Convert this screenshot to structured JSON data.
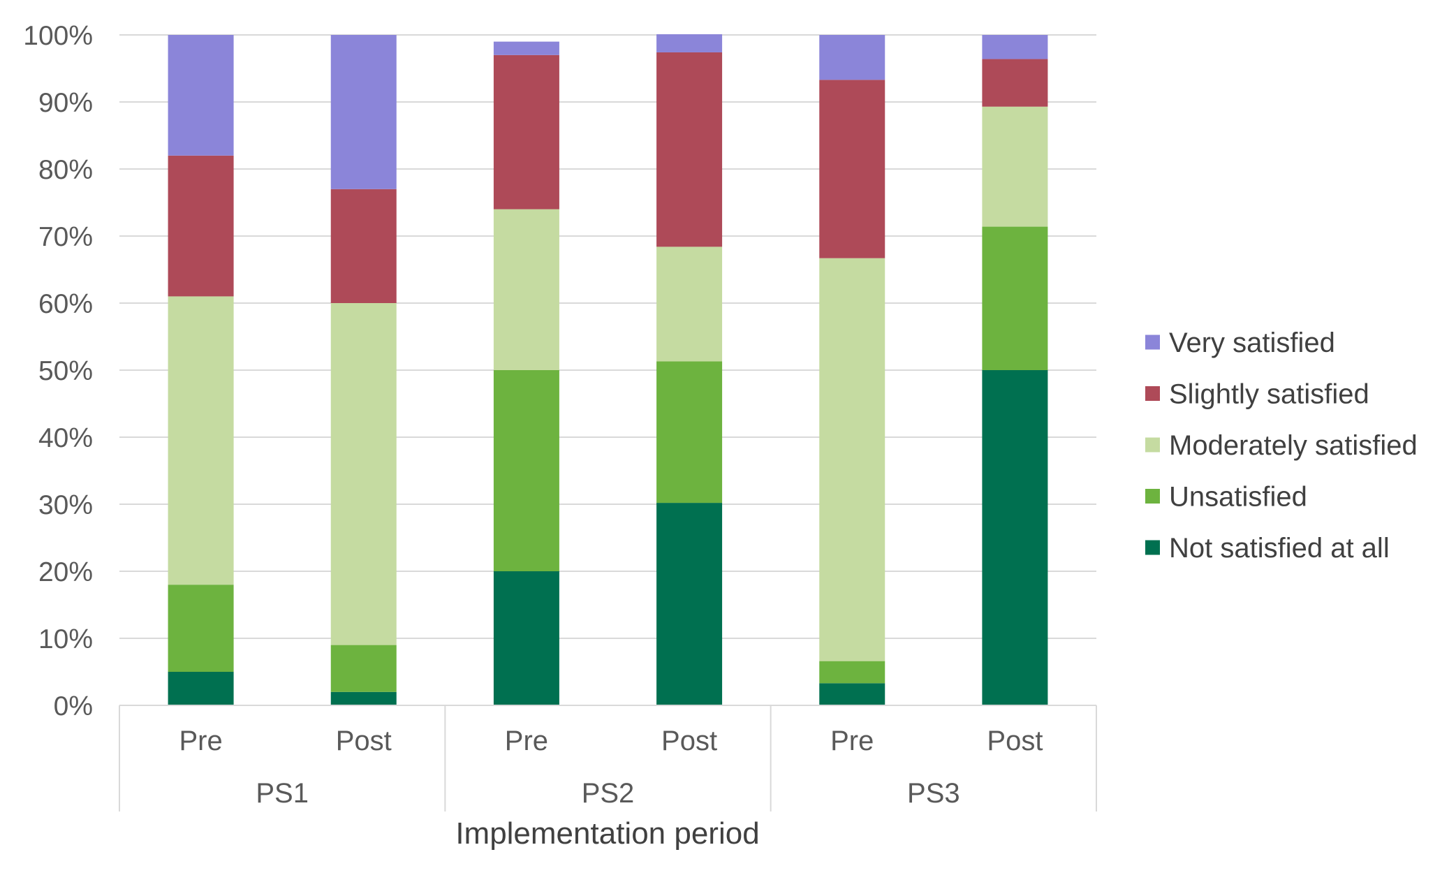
{
  "chart_data": {
    "type": "bar",
    "stacked": true,
    "percent": true,
    "title": "",
    "xlabel": "Implementation period",
    "ylabel": "",
    "ylim": [
      0,
      100
    ],
    "yticks": [
      "0%",
      "10%",
      "20%",
      "30%",
      "40%",
      "50%",
      "60%",
      "70%",
      "80%",
      "90%",
      "100%"
    ],
    "groups": [
      {
        "label": "PS1",
        "categories": [
          "Pre",
          "Post"
        ]
      },
      {
        "label": "PS2",
        "categories": [
          "Pre",
          "Post"
        ]
      },
      {
        "label": "PS3",
        "categories": [
          "Pre",
          "Post"
        ]
      }
    ],
    "series": [
      {
        "name": "Not satisfied at all",
        "color": "#007050",
        "values": [
          5,
          2,
          20,
          30.2,
          3.3,
          50
        ]
      },
      {
        "name": "Unsatisfied",
        "color": "#6DB33F",
        "values": [
          13,
          7,
          30,
          21.1,
          3.3,
          21.4
        ]
      },
      {
        "name": "Moderately satisfied",
        "color": "#C5DBA1",
        "values": [
          43,
          51,
          24,
          17.1,
          60.1,
          17.9
        ]
      },
      {
        "name": "Slightly satisfied",
        "color": "#AE4A58",
        "values": [
          21,
          17,
          23,
          29,
          26.6,
          7.1
        ]
      },
      {
        "name": "Very satisfied",
        "color": "#8B85D9",
        "values": [
          18,
          23,
          2,
          2.7,
          6.7,
          3.6
        ]
      }
    ],
    "legend_position": "right",
    "grid": true
  }
}
